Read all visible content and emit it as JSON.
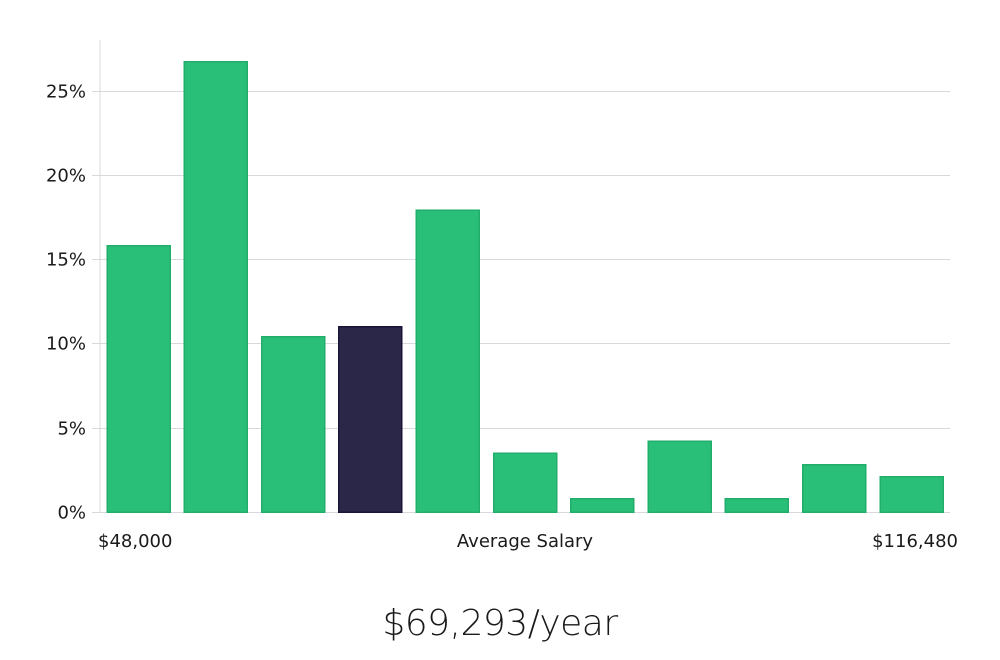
{
  "chart_data": {
    "type": "bar",
    "categories": [
      "1",
      "2",
      "3",
      "4",
      "5",
      "6",
      "7",
      "8",
      "9",
      "10",
      "11"
    ],
    "values": [
      15.8,
      26.7,
      10.4,
      11.0,
      17.9,
      3.5,
      0.8,
      4.2,
      0.8,
      2.8,
      2.1
    ],
    "highlight_index": 3,
    "ylim": [
      0,
      28
    ],
    "yticks": [
      0,
      5,
      10,
      15,
      20,
      25
    ],
    "ytick_labels": [
      "0%",
      "5%",
      "10%",
      "15%",
      "20%",
      "25%"
    ],
    "x_labels": {
      "left": "$48,000",
      "center": "Average Salary",
      "right": "$116,480"
    },
    "grid": true,
    "legend": "none"
  },
  "colors": {
    "bar": "#2abf78",
    "bar_stroke": "#21ad6a",
    "highlight": "#2b2748",
    "highlight_stroke": "#1a1638",
    "grid": "#d9d9dd"
  },
  "summary": {
    "average_salary_text": "$69,293/year"
  }
}
